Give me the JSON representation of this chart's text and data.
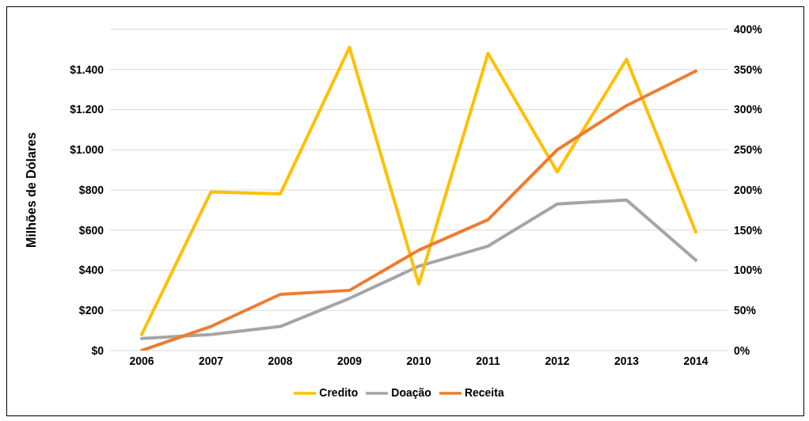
{
  "chart_data": {
    "type": "line",
    "ylabel": "Milhões de Dólares",
    "categories": [
      "2006",
      "2007",
      "2008",
      "2009",
      "2010",
      "2011",
      "2012",
      "2013",
      "2014"
    ],
    "series": [
      {
        "name": "Doação",
        "color": "#a5a5a5",
        "values": [
          60,
          80,
          120,
          260,
          420,
          520,
          730,
          750,
          450
        ]
      },
      {
        "name": "Credito",
        "color": "#ffc000",
        "values": [
          80,
          790,
          780,
          1510,
          330,
          1480,
          890,
          1450,
          590
        ]
      },
      {
        "name": "Receita",
        "color": "#ed7d31",
        "axis": "y2",
        "values": [
          0,
          30,
          70,
          75,
          125,
          163,
          250,
          305,
          348
        ]
      }
    ],
    "ylim": [
      0,
      1600
    ],
    "yticks": [
      {
        "value": 0,
        "label": "$0"
      },
      {
        "value": 200,
        "label": "$200"
      },
      {
        "value": 400,
        "label": "$400"
      },
      {
        "value": 600,
        "label": "$600"
      },
      {
        "value": 800,
        "label": "$800"
      },
      {
        "value": 1000,
        "label": "$1.000"
      },
      {
        "value": 1200,
        "label": "$1.200"
      },
      {
        "value": 1400,
        "label": "$1.400"
      },
      {
        "value": 1600,
        "label": null
      }
    ],
    "y2lim": [
      0,
      400
    ],
    "y2ticks": [
      {
        "value": 0,
        "label": "0%"
      },
      {
        "value": 50,
        "label": "50%"
      },
      {
        "value": 100,
        "label": "100%"
      },
      {
        "value": 150,
        "label": "150%"
      },
      {
        "value": 200,
        "label": "200%"
      },
      {
        "value": 250,
        "label": "250%"
      },
      {
        "value": 300,
        "label": "300%"
      },
      {
        "value": 350,
        "label": "350%"
      },
      {
        "value": 400,
        "label": "400%"
      }
    ],
    "grid": "y",
    "legend": "bottom",
    "marker": "none",
    "line_style": "solid"
  }
}
